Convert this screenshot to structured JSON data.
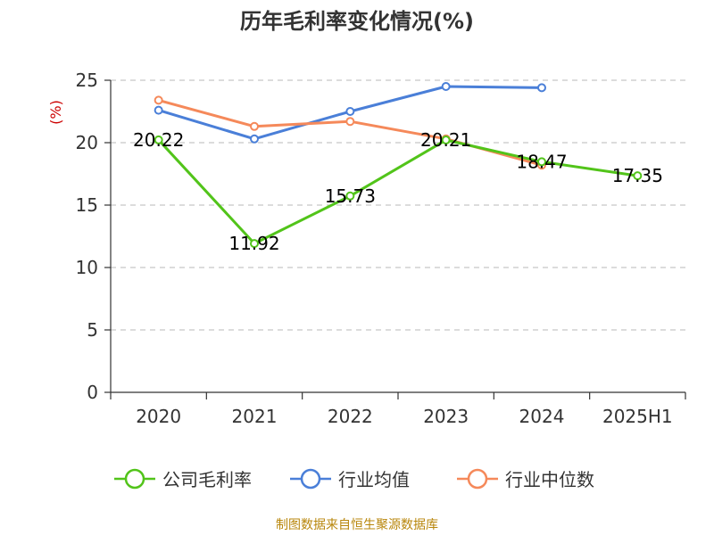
{
  "title": "历年毛利率变化情况(%)",
  "source": "制图数据来自恒生聚源数据库",
  "chart_data": {
    "type": "line",
    "title": "历年毛利率变化情况(%)",
    "ylabel": "(%)",
    "categories": [
      "2020",
      "2021",
      "2022",
      "2023",
      "2024",
      "2025H1"
    ],
    "ylim": [
      0,
      25
    ],
    "yticks": [
      0,
      5,
      10,
      15,
      20,
      25
    ],
    "grid": "horizontal-dashed",
    "legend_position": "bottom",
    "series": [
      {
        "name": "公司毛利率",
        "color": "#52c41a",
        "values": [
          20.22,
          11.92,
          15.73,
          20.21,
          18.47,
          17.35
        ],
        "labels": [
          "20.22",
          "11.92",
          "15.73",
          "20.21",
          "18.47",
          "17.35"
        ]
      },
      {
        "name": "行业均值",
        "color": "#4a7fd8",
        "values": [
          22.6,
          20.3,
          22.5,
          24.5,
          24.4,
          null
        ]
      },
      {
        "name": "行业中位数",
        "color": "#f5895a",
        "values": [
          23.4,
          21.3,
          21.7,
          20.3,
          18.2,
          null
        ]
      }
    ]
  }
}
